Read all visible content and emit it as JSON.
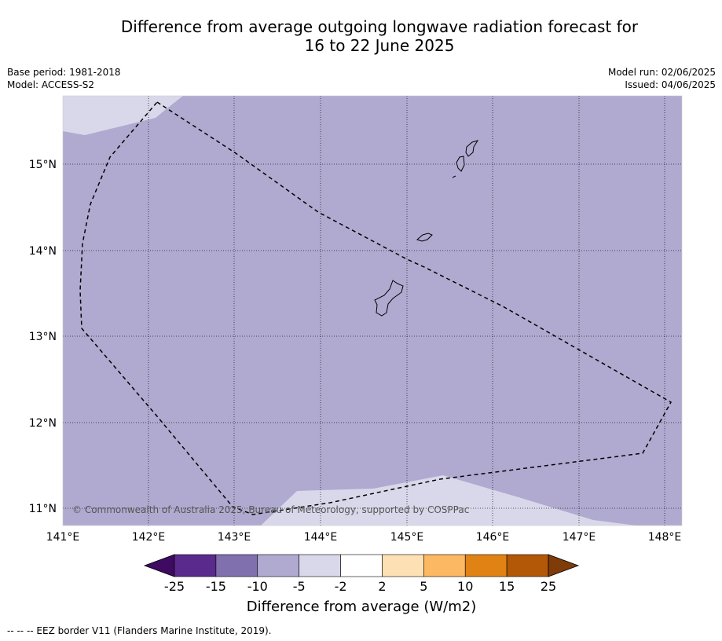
{
  "title_line1": "Difference from average outgoing longwave radiation forecast for",
  "title_line2": "16 to 22 June 2025",
  "base_period": "Base period: 1981-2018",
  "model": "Model: ACCESS-S2",
  "model_run": "Model run: 02/06/2025",
  "issued": "Issued: 04/06/2025",
  "copyright": "© Commonwealth of Australia 2025, Bureau of Meteorology, supported by COSPPac",
  "colorbar_title": "Difference from average (W/m2)",
  "footer": "--  --  -- EEZ border V11 (Flanders Marine Institute, 2019).",
  "lat_labels": [
    "15°N",
    "14°N",
    "13°N",
    "12°N",
    "11°N"
  ],
  "lon_labels": [
    "141°E",
    "142°E",
    "143°E",
    "144°E",
    "145°E",
    "146°E",
    "147°E",
    "148°E"
  ],
  "colorbar": {
    "labels": [
      "-25",
      "-15",
      "-10",
      "-5",
      "-2",
      "2",
      "5",
      "10",
      "15",
      "25"
    ],
    "colors": [
      "#3f0a61",
      "#5a2a8c",
      "#8070ad",
      "#b0aad0",
      "#d8d8ea",
      "#ffffff",
      "#fee0b5",
      "#fdb863",
      "#e08214",
      "#b35806",
      "#7f3b08"
    ]
  },
  "map_colors": {
    "background_anomaly": "#b0aad0",
    "light_anomaly": "#d8d8ea"
  }
}
